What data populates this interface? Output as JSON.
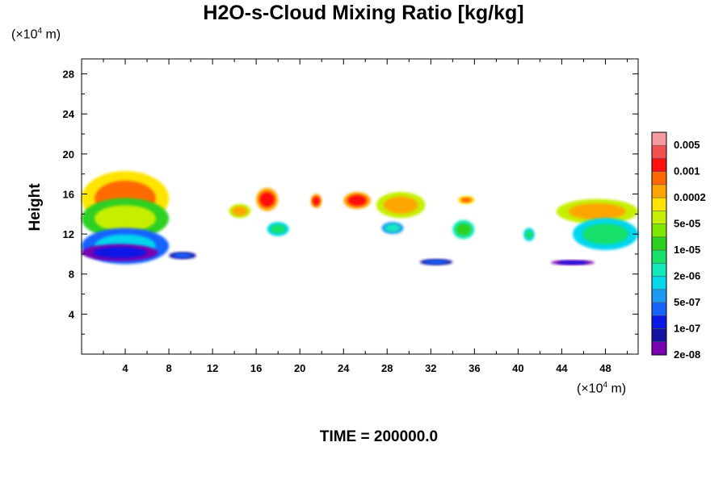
{
  "title": "H2O-s-Cloud Mixing Ratio [kg/kg]",
  "time_label": "TIME = 200000.0",
  "y_unit_prefix": "(×10",
  "y_unit_exp": "4",
  "y_unit_suffix": " m)",
  "x_unit_prefix": "(×10",
  "x_unit_exp": "4",
  "x_unit_suffix": " m)",
  "chart_data": {
    "type": "heatmap",
    "title": "H2O-s-Cloud Mixing Ratio [kg/kg]",
    "xlabel": "",
    "ylabel": "Height",
    "xlim": [
      0,
      51
    ],
    "ylim": [
      0,
      29.5
    ],
    "x_ticks": [
      4,
      8,
      12,
      16,
      20,
      24,
      28,
      32,
      36,
      40,
      44,
      48
    ],
    "y_ticks": [
      4,
      8,
      12,
      16,
      20,
      24,
      28
    ],
    "x_tick_labels": [
      "4",
      "8",
      "12",
      "16",
      "20",
      "24",
      "28",
      "32",
      "36",
      "40",
      "44",
      "48"
    ],
    "y_tick_labels": [
      "4",
      "8",
      "12",
      "16",
      "20",
      "24",
      "28"
    ],
    "colorbar": {
      "colors": [
        "#f79aa0",
        "#f05050",
        "#ff1010",
        "#ff6a00",
        "#ffa500",
        "#ffe400",
        "#c6ef00",
        "#7fe600",
        "#2ed020",
        "#18e06a",
        "#12e8bc",
        "#04d6ee",
        "#1a9af0",
        "#1864ff",
        "#0a18e6",
        "#1414a0",
        "#7a00b0"
      ],
      "labels": [
        "0.005",
        "0.001",
        "0.0002",
        "5e-05",
        "1e-05",
        "2e-06",
        "5e-07",
        "1e-07",
        "2e-08"
      ]
    },
    "regions": [
      {
        "x": [
          0,
          8
        ],
        "y": [
          12.8,
          18.3
        ],
        "level": 3
      },
      {
        "x": [
          0,
          8
        ],
        "y": [
          11.5,
          15.6
        ],
        "level": 6
      },
      {
        "x": [
          0,
          8
        ],
        "y": [
          9.0,
          12.6
        ],
        "level": 11
      },
      {
        "x": [
          0,
          7
        ],
        "y": [
          9.3,
          11.0
        ],
        "level": 14
      },
      {
        "x": [
          8,
          10.5
        ],
        "y": [
          9.5,
          10.2
        ],
        "level": 13
      },
      {
        "x": [
          13.5,
          15.5
        ],
        "y": [
          13.6,
          15.0
        ],
        "level": 4
      },
      {
        "x": [
          16,
          18
        ],
        "y": [
          14.3,
          16.6
        ],
        "level": 2
      },
      {
        "x": [
          17,
          19
        ],
        "y": [
          11.8,
          13.2
        ],
        "level": 9
      },
      {
        "x": [
          21,
          22
        ],
        "y": [
          14.6,
          16.0
        ],
        "level": 2
      },
      {
        "x": [
          24,
          26.5
        ],
        "y": [
          14.5,
          16.2
        ],
        "level": 2
      },
      {
        "x": [
          27,
          31.5
        ],
        "y": [
          13.6,
          16.2
        ],
        "level": 4
      },
      {
        "x": [
          27.5,
          29.5
        ],
        "y": [
          12.0,
          13.2
        ],
        "level": 10
      },
      {
        "x": [
          31,
          34
        ],
        "y": [
          8.9,
          9.5
        ],
        "level": 13
      },
      {
        "x": [
          34,
          36
        ],
        "y": [
          11.5,
          13.4
        ],
        "level": 8
      },
      {
        "x": [
          34.5,
          36
        ],
        "y": [
          15.0,
          15.8
        ],
        "level": 3
      },
      {
        "x": [
          40.5,
          41.5
        ],
        "y": [
          11.3,
          12.6
        ],
        "level": 9
      },
      {
        "x": [
          43,
          47
        ],
        "y": [
          8.9,
          9.4
        ],
        "level": 14
      },
      {
        "x": [
          43.5,
          51
        ],
        "y": [
          13.0,
          15.5
        ],
        "level": 4
      },
      {
        "x": [
          45,
          51
        ],
        "y": [
          10.4,
          13.6
        ],
        "level": 9
      }
    ]
  }
}
